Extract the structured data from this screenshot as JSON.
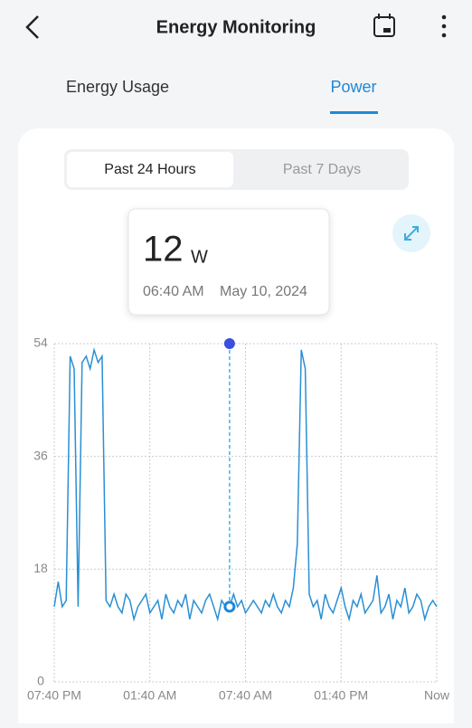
{
  "header": {
    "title": "Energy Monitoring"
  },
  "tabs": [
    "Energy Usage",
    "Power"
  ],
  "ranges": [
    "Past 24 Hours",
    "Past 7 Days"
  ],
  "tooltip": {
    "value": 12,
    "unit": "W",
    "time": "06:40 AM",
    "date": "May 10, 2024",
    "x": 11
  },
  "chart_data": {
    "type": "line",
    "x": [
      0,
      0.25,
      0.5,
      0.75,
      1,
      1.25,
      1.5,
      1.75,
      2,
      2.25,
      2.5,
      2.75,
      3,
      3.25,
      3.5,
      3.75,
      4,
      4.25,
      4.5,
      4.75,
      5,
      5.25,
      5.5,
      5.75,
      6,
      6.25,
      6.5,
      6.75,
      7,
      7.25,
      7.5,
      7.75,
      8,
      8.25,
      8.5,
      8.75,
      9,
      9.25,
      9.5,
      9.75,
      10,
      10.25,
      10.5,
      10.75,
      11,
      11.25,
      11.5,
      11.75,
      12,
      12.25,
      12.5,
      12.75,
      13,
      13.25,
      13.5,
      13.75,
      14,
      14.25,
      14.5,
      14.75,
      15,
      15.25,
      15.5,
      15.75,
      16,
      16.25,
      16.5,
      16.75,
      17,
      17.25,
      17.5,
      17.75,
      18,
      18.25,
      18.5,
      18.75,
      19,
      19.25,
      19.5,
      19.75,
      20,
      20.25,
      20.5,
      20.75,
      21,
      21.25,
      21.5,
      21.75,
      22,
      22.25,
      22.5,
      22.75,
      23,
      23.25,
      23.5,
      23.75,
      24
    ],
    "series": [
      {
        "name": "Power",
        "color": "#2a8fd4",
        "values": [
          12,
          16,
          12,
          13,
          52,
          50,
          12,
          51,
          52,
          50,
          53,
          51,
          52,
          13,
          12,
          14,
          12,
          11,
          14,
          13,
          10,
          12,
          13,
          14,
          11,
          12,
          13,
          10,
          14,
          12,
          11,
          13,
          12,
          14,
          10,
          13,
          12,
          11,
          13,
          14,
          12,
          10,
          13,
          12,
          12,
          14,
          12,
          13,
          11,
          12,
          13,
          12,
          11,
          13,
          12,
          14,
          12,
          11,
          13,
          12,
          15,
          22,
          53,
          50,
          14,
          12,
          13,
          10,
          14,
          12,
          11,
          13,
          15,
          12,
          10,
          13,
          12,
          14,
          11,
          12,
          13,
          17,
          11,
          12,
          14,
          10,
          13,
          12,
          15,
          11,
          12,
          14,
          13,
          10,
          12,
          13,
          12
        ]
      }
    ],
    "xlim": [
      0,
      24
    ],
    "xticks": [
      {
        "value": 0,
        "label": "07:40 PM"
      },
      {
        "value": 6,
        "label": "01:40 AM"
      },
      {
        "value": 12,
        "label": "07:40 AM"
      },
      {
        "value": 18,
        "label": "01:40 PM"
      },
      {
        "value": 24,
        "label": "Now"
      }
    ],
    "ylim": [
      0,
      54
    ],
    "yticks": [
      0,
      18,
      36,
      54
    ],
    "grid": true
  }
}
